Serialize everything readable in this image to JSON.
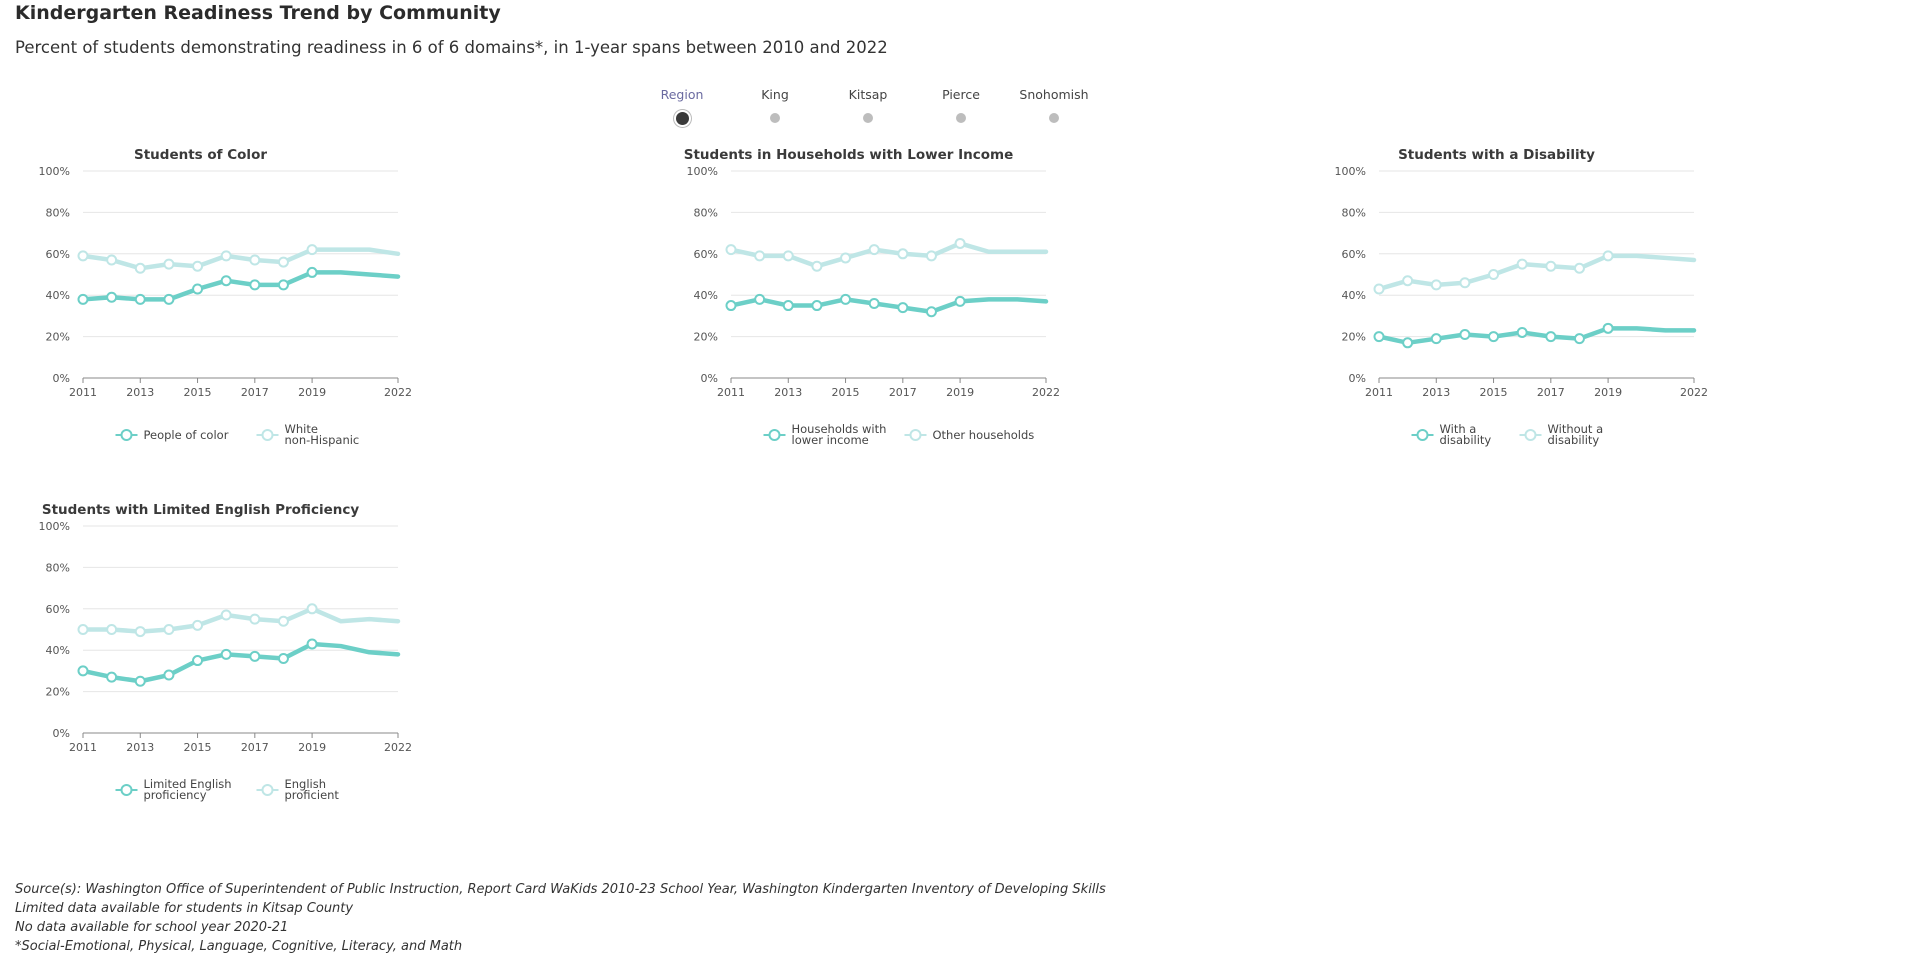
{
  "header": {
    "title": "Kindergarten Readiness Trend by Community",
    "subtitle": "Percent of students demonstrating readiness in 6 of 6 domains*, in 1-year spans between 2010 and 2022"
  },
  "tabs": [
    {
      "label": "Region",
      "active": true
    },
    {
      "label": "King",
      "active": false
    },
    {
      "label": "Kitsap",
      "active": false
    },
    {
      "label": "Pierce",
      "active": false
    },
    {
      "label": "Snohomish",
      "active": false
    }
  ],
  "colors": {
    "primary": "#6ccfc7",
    "secondary": "#bfe6e6",
    "grid": "#e6e6e6",
    "axis": "#888888"
  },
  "axis_common": {
    "y_ticks": [
      "0%",
      "20%",
      "40%",
      "60%",
      "80%",
      "100%"
    ],
    "x_ticks": [
      "2011",
      "2013",
      "2015",
      "2017",
      "2019",
      "2022"
    ]
  },
  "chart_data": [
    {
      "type": "line",
      "title": "Students of Color",
      "x": [
        2011,
        2012,
        2013,
        2014,
        2015,
        2016,
        2017,
        2018,
        2019,
        2020,
        2021,
        2022
      ],
      "xlim": [
        2011,
        2022
      ],
      "ylim": [
        0,
        100
      ],
      "series": [
        {
          "name": "People of color",
          "legend": [
            "People of color"
          ],
          "role": "primary",
          "values": [
            38,
            39,
            38,
            38,
            43,
            47,
            45,
            45,
            51,
            51,
            50,
            49
          ]
        },
        {
          "name": "White non-Hispanic",
          "legend": [
            "White",
            "non-Hispanic"
          ],
          "role": "secondary",
          "values": [
            59,
            57,
            53,
            55,
            54,
            59,
            57,
            56,
            62,
            62,
            62,
            60
          ]
        }
      ]
    },
    {
      "type": "line",
      "title": "Students in Households with Lower Income",
      "x": [
        2011,
        2012,
        2013,
        2014,
        2015,
        2016,
        2017,
        2018,
        2019,
        2020,
        2021,
        2022
      ],
      "xlim": [
        2011,
        2022
      ],
      "ylim": [
        0,
        100
      ],
      "series": [
        {
          "name": "Households with lower income",
          "legend": [
            "Households with",
            "lower income"
          ],
          "role": "primary",
          "values": [
            35,
            38,
            35,
            35,
            38,
            36,
            34,
            32,
            37,
            38,
            38,
            37
          ]
        },
        {
          "name": "Other households",
          "legend": [
            "Other households"
          ],
          "role": "secondary",
          "values": [
            62,
            59,
            59,
            54,
            58,
            62,
            60,
            59,
            65,
            61,
            61,
            61
          ]
        }
      ]
    },
    {
      "type": "line",
      "title": "Students with a Disability",
      "x": [
        2011,
        2012,
        2013,
        2014,
        2015,
        2016,
        2017,
        2018,
        2019,
        2020,
        2021,
        2022
      ],
      "xlim": [
        2011,
        2022
      ],
      "ylim": [
        0,
        100
      ],
      "series": [
        {
          "name": "With a disability",
          "legend": [
            "With a",
            "disability"
          ],
          "role": "primary",
          "values": [
            20,
            17,
            19,
            21,
            20,
            22,
            20,
            19,
            24,
            24,
            23,
            23
          ]
        },
        {
          "name": "Without a disability",
          "legend": [
            "Without a",
            "disability"
          ],
          "role": "secondary",
          "values": [
            43,
            47,
            45,
            46,
            50,
            55,
            54,
            53,
            59,
            59,
            58,
            57
          ]
        }
      ]
    },
    {
      "type": "line",
      "title": "Students with Limited English Proficiency",
      "x": [
        2011,
        2012,
        2013,
        2014,
        2015,
        2016,
        2017,
        2018,
        2019,
        2020,
        2021,
        2022
      ],
      "xlim": [
        2011,
        2022
      ],
      "ylim": [
        0,
        100
      ],
      "series": [
        {
          "name": "Limited English proficiency",
          "legend": [
            "Limited English",
            "proficiency"
          ],
          "role": "primary",
          "values": [
            30,
            27,
            25,
            28,
            35,
            38,
            37,
            36,
            43,
            42,
            39,
            38
          ]
        },
        {
          "name": "English proficient",
          "legend": [
            "English",
            "proficient"
          ],
          "role": "secondary",
          "values": [
            50,
            50,
            49,
            50,
            52,
            57,
            55,
            54,
            60,
            54,
            55,
            54
          ]
        }
      ]
    }
  ],
  "footer": {
    "notes": [
      "Source(s): Washington Office of Superintendent of Public Instruction, Report Card WaKids 2010-23 School Year, Washington Kindergarten Inventory of Developing Skills",
      "Limited data available for students in Kitsap County",
      "No data available for school year 2020-21",
      "*Social-Emotional, Physical, Language, Cognitive, Literacy, and Math"
    ]
  }
}
